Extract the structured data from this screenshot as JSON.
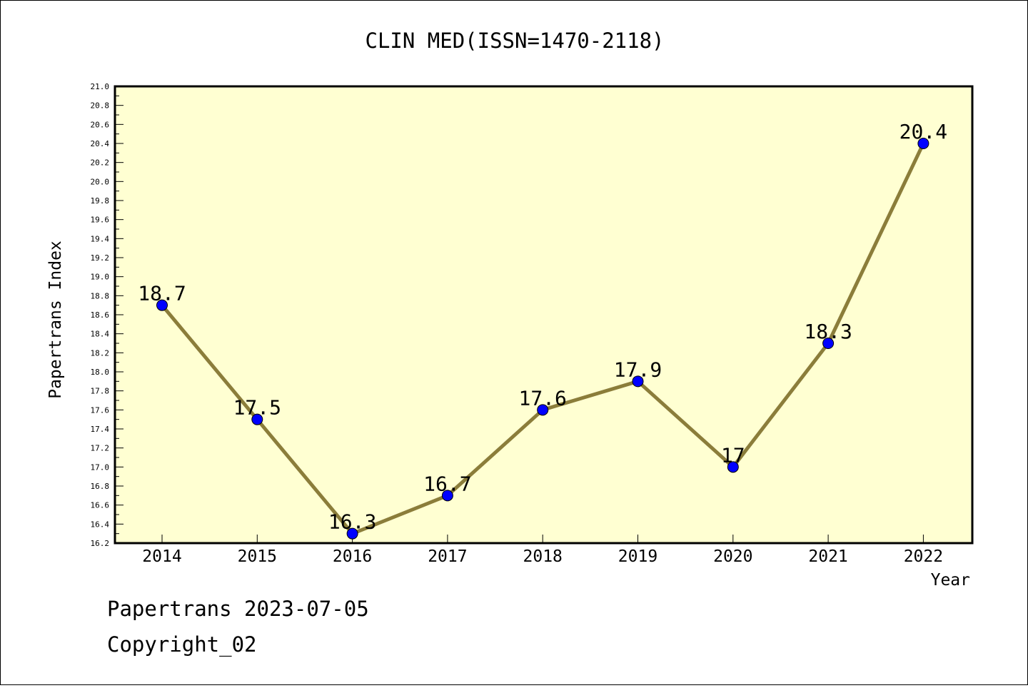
{
  "chart_data": {
    "type": "line",
    "title": "CLIN MED(ISSN=1470-2118)",
    "xlabel": "Year",
    "ylabel": "Papertrans Index",
    "categories": [
      "2014",
      "2015",
      "2016",
      "2017",
      "2018",
      "2019",
      "2020",
      "2021",
      "2022"
    ],
    "values": [
      18.7,
      17.5,
      16.3,
      16.7,
      17.6,
      17.9,
      17.0,
      18.3,
      20.4
    ],
    "data_labels": [
      "18.7",
      "17.5",
      "16.3",
      "16.7",
      "17.6",
      "17.9",
      "17",
      "18.3",
      "20.4"
    ],
    "ylim": [
      16.2,
      21.0
    ],
    "yticks": [
      "16.2",
      "16.4",
      "16.6",
      "16.8",
      "17.0",
      "17.2",
      "17.4",
      "17.6",
      "17.8",
      "18.0",
      "18.2",
      "18.4",
      "18.6",
      "18.8",
      "19.0",
      "19.2",
      "19.4",
      "19.6",
      "19.8",
      "20.0",
      "20.2",
      "20.4",
      "20.6",
      "20.8",
      "21.0"
    ],
    "grid": false,
    "legend": "none",
    "colors": {
      "plot_background": "#ffffd2",
      "line": "#8b7d3a",
      "marker": "#0000ff"
    }
  },
  "footer": {
    "line1": "Papertrans 2023-07-05",
    "line2": "Copyright_02"
  }
}
